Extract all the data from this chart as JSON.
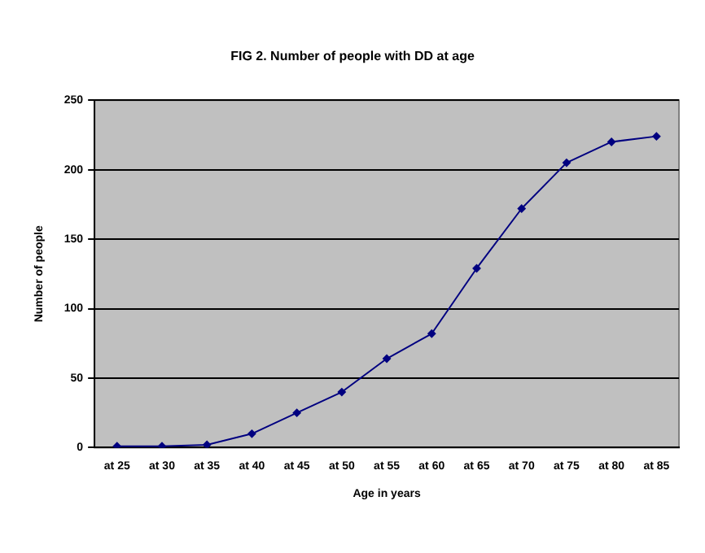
{
  "chart_data": {
    "type": "line",
    "title": "FIG 2. Number of people with DD at age",
    "xlabel": "Age in years",
    "ylabel": "Number of people",
    "categories": [
      "at 25",
      "at 30",
      "at 35",
      "at 40",
      "at 45",
      "at 50",
      "at 55",
      "at 60",
      "at 65",
      "at 70",
      "at 75",
      "at 80",
      "at 85"
    ],
    "series": [
      {
        "color": "#000080",
        "values": [
          1,
          1,
          2,
          10,
          25,
          40,
          64,
          82,
          129,
          172,
          205,
          220,
          224
        ]
      }
    ],
    "ylim": [
      0,
      250
    ],
    "yticks": [
      0,
      50,
      100,
      150,
      200,
      250
    ],
    "grid": "y",
    "legend": false,
    "marker": "diamond",
    "line_style": "solid"
  }
}
